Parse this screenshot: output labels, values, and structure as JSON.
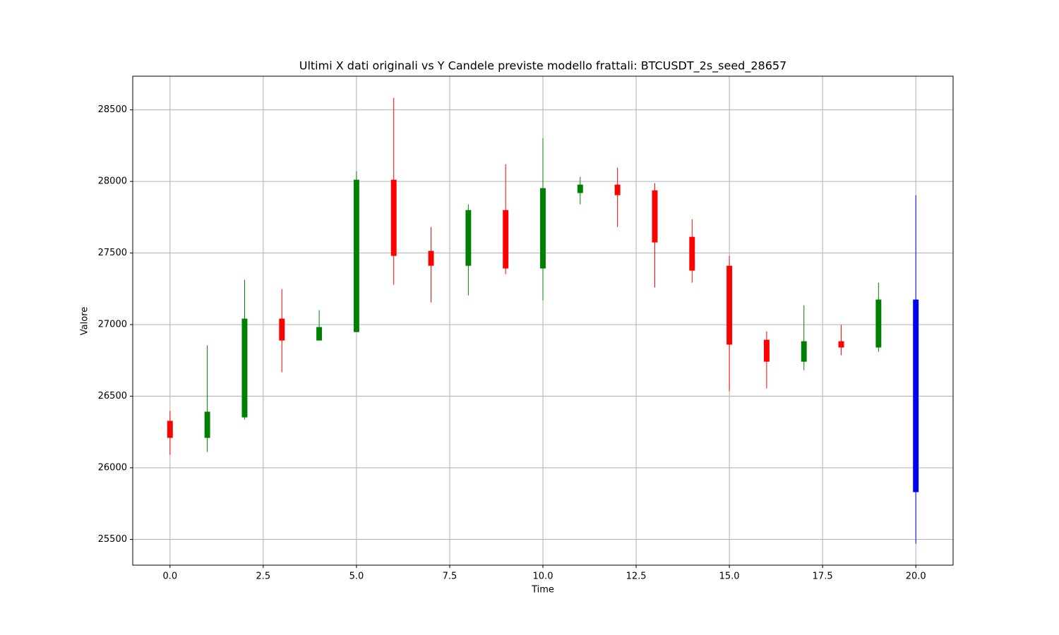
{
  "chart_data": {
    "type": "candlestick",
    "title": "Ultimi X dati originali vs Y Candele previste modello frattali: BTCUSDT_2s_seed_28657",
    "x_label": "Time",
    "y_label": "Valore",
    "x": [
      0,
      1,
      2,
      3,
      4,
      5,
      6,
      7,
      8,
      9,
      10,
      11,
      12,
      13,
      14,
      15,
      16,
      17,
      18,
      19,
      20
    ],
    "open": [
      26328,
      26209,
      26352,
      27042,
      26889,
      26948,
      28012,
      27515,
      27411,
      27800,
      27392,
      27919,
      27978,
      27938,
      27613,
      27411,
      26894,
      26741,
      26884,
      26840,
      27175
    ],
    "high": [
      26397,
      26855,
      27313,
      27249,
      27101,
      28071,
      28584,
      27682,
      27840,
      28121,
      28303,
      28032,
      28096,
      27988,
      27736,
      27480,
      26953,
      27135,
      26998,
      27293,
      27904
    ],
    "low": [
      26091,
      26111,
      26337,
      26667,
      26889,
      26948,
      27278,
      27155,
      27204,
      27352,
      27170,
      27840,
      27682,
      27259,
      27293,
      26534,
      26554,
      26682,
      26786,
      26810,
      25470
    ],
    "close": [
      26209,
      26392,
      27042,
      26889,
      26983,
      28012,
      27480,
      27411,
      27800,
      27392,
      27953,
      27978,
      27904,
      27574,
      27377,
      26860,
      26741,
      26884,
      26840,
      27175,
      25830
    ],
    "colors": [
      "red",
      "green",
      "green",
      "red",
      "green",
      "green",
      "red",
      "red",
      "green",
      "red",
      "green",
      "green",
      "red",
      "red",
      "red",
      "red",
      "red",
      "green",
      "red",
      "green",
      "blue"
    ],
    "xlim": [
      -1,
      21
    ],
    "xticks": [
      {
        "value": 0,
        "label": "0.0"
      },
      {
        "value": 2.5,
        "label": "2.5"
      },
      {
        "value": 5,
        "label": "5.0"
      },
      {
        "value": 7.5,
        "label": "7.5"
      },
      {
        "value": 10,
        "label": "10.0"
      },
      {
        "value": 12.5,
        "label": "12.5"
      },
      {
        "value": 15,
        "label": "15.0"
      },
      {
        "value": 17.5,
        "label": "17.5"
      },
      {
        "value": 20,
        "label": "20.0"
      }
    ],
    "ylim": [
      25320,
      28735
    ],
    "yticks": [
      25500,
      26000,
      26500,
      27000,
      27500,
      28000,
      28500
    ],
    "grid": true
  }
}
